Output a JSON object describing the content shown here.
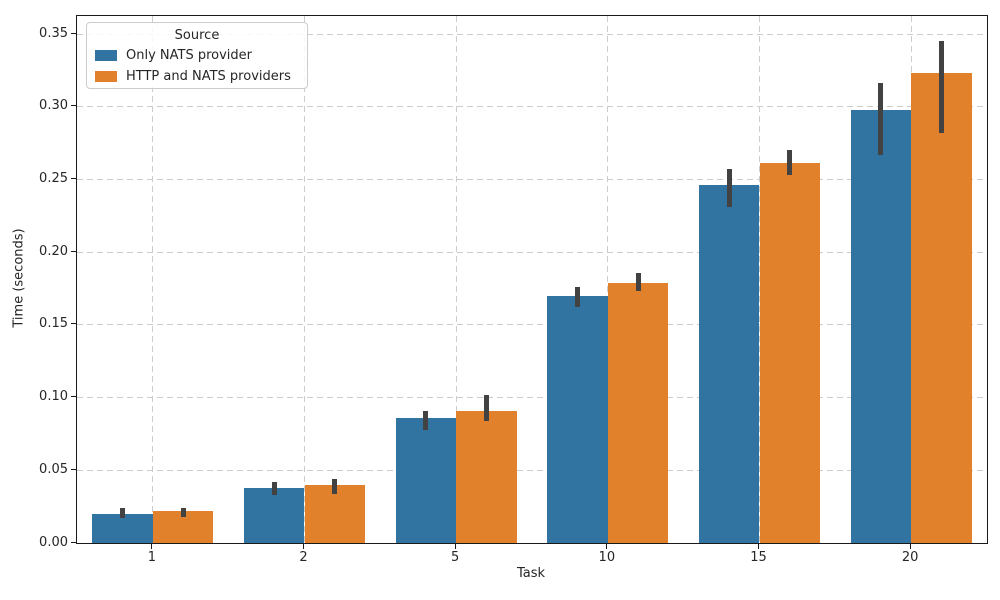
{
  "chart_data": {
    "type": "bar",
    "title": "",
    "xlabel": "Task",
    "ylabel": "Time (seconds)",
    "categories": [
      "1",
      "2",
      "5",
      "10",
      "15",
      "20"
    ],
    "series": [
      {
        "name": "Only NATS provider",
        "color": "#3274a1",
        "values": [
          0.02,
          0.038,
          0.086,
          0.17,
          0.246,
          0.298
        ],
        "err_low": [
          0.017,
          0.033,
          0.078,
          0.162,
          0.231,
          0.267
        ],
        "err_high": [
          0.024,
          0.042,
          0.091,
          0.176,
          0.257,
          0.316
        ]
      },
      {
        "name": "HTTP and NATS providers",
        "color": "#e1812c",
        "values": [
          0.022,
          0.04,
          0.091,
          0.179,
          0.261,
          0.323
        ],
        "err_low": [
          0.018,
          0.034,
          0.084,
          0.173,
          0.253,
          0.282
        ],
        "err_high": [
          0.024,
          0.044,
          0.102,
          0.186,
          0.27,
          0.345
        ]
      }
    ],
    "ylim": [
      0,
      0.35
    ],
    "yticks": [
      "0.00",
      "0.05",
      "0.10",
      "0.15",
      "0.20",
      "0.25",
      "0.30",
      "0.35"
    ],
    "legend": {
      "title": "Source",
      "position": "upper-left"
    },
    "grid": true,
    "grid_color": "#cccccc",
    "spine_color": "#1a1a1a",
    "error_bar_color": "#424242",
    "background": "#ffffff"
  }
}
